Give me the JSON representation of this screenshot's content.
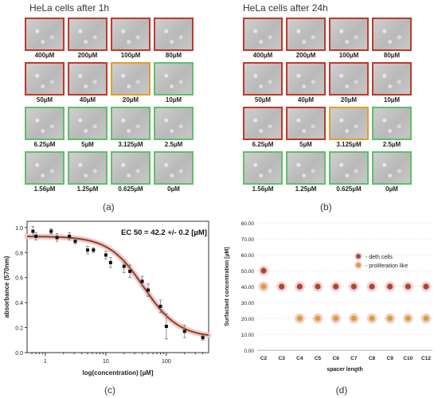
{
  "panel_a": {
    "title": "HeLa cells after 1h",
    "label": "(a)",
    "cells": [
      {
        "conc": "400µM",
        "border": "red"
      },
      {
        "conc": "200µM",
        "border": "red"
      },
      {
        "conc": "100µM",
        "border": "red"
      },
      {
        "conc": "80µM",
        "border": "red"
      },
      {
        "conc": "50µM",
        "border": "red"
      },
      {
        "conc": "40µM",
        "border": "red"
      },
      {
        "conc": "20µM",
        "border": "orange"
      },
      {
        "conc": "10µM",
        "border": "green"
      },
      {
        "conc": "6.25µM",
        "border": "green"
      },
      {
        "conc": "5µM",
        "border": "green"
      },
      {
        "conc": "3.125µM",
        "border": "green"
      },
      {
        "conc": "2.5µM",
        "border": "green"
      },
      {
        "conc": "1.56µM",
        "border": "green"
      },
      {
        "conc": "1.25µM",
        "border": "green"
      },
      {
        "conc": "0.625µM",
        "border": "green"
      },
      {
        "conc": "0µM",
        "border": "green"
      }
    ]
  },
  "panel_b": {
    "title": "HeLa cells after 24h",
    "label": "(b)",
    "cells": [
      {
        "conc": "400µM",
        "border": "red"
      },
      {
        "conc": "200µM",
        "border": "red"
      },
      {
        "conc": "100µM",
        "border": "red"
      },
      {
        "conc": "80µM",
        "border": "red"
      },
      {
        "conc": "50µM",
        "border": "red"
      },
      {
        "conc": "40µM",
        "border": "red"
      },
      {
        "conc": "20µM",
        "border": "red"
      },
      {
        "conc": "10µM",
        "border": "red"
      },
      {
        "conc": "6.25µM",
        "border": "red"
      },
      {
        "conc": "5µM",
        "border": "red"
      },
      {
        "conc": "3.125µM",
        "border": "orange"
      },
      {
        "conc": "2.5µM",
        "border": "green"
      },
      {
        "conc": "1.56µM",
        "border": "green"
      },
      {
        "conc": "1.25µM",
        "border": "green"
      },
      {
        "conc": "0.625µM",
        "border": "green"
      },
      {
        "conc": "0µM",
        "border": "green"
      }
    ]
  },
  "colors": {
    "red": "#c0392b",
    "orange": "#e0a030",
    "green": "#5fbf6a",
    "curve": "#8b4513",
    "death": "#a8482c",
    "prolif": "#d9a03a",
    "halo": "#f3c6d0"
  },
  "chart_data": [
    {
      "type": "scatter",
      "label": "(c)",
      "annotation": "EC 50 = 42.2 +/- 0.2  [µM]",
      "xlabel": "log(concentration) [µM]",
      "ylabel": "absorbance (570nm)",
      "xscale": "log",
      "xlim": [
        0.5,
        500
      ],
      "ylim": [
        0.0,
        1.05
      ],
      "xticks": [
        1,
        10,
        100
      ],
      "xtick_labels": [
        "1",
        "10",
        "100"
      ],
      "yticks": [
        0.0,
        0.2,
        0.4,
        0.6,
        0.8,
        1.0
      ],
      "ytick_labels": [
        "0.0",
        "0.2",
        "0.4",
        "0.6",
        "0.8",
        "1.0"
      ],
      "points": [
        {
          "x": 0.625,
          "y": 0.97,
          "err": 0.04
        },
        {
          "x": 0.7,
          "y": 0.93,
          "err": 0.03
        },
        {
          "x": 1.25,
          "y": 0.97,
          "err": 0.02
        },
        {
          "x": 1.56,
          "y": 0.92,
          "err": 0.03
        },
        {
          "x": 2.5,
          "y": 0.93,
          "err": 0.03
        },
        {
          "x": 3.125,
          "y": 0.89,
          "err": 0.02
        },
        {
          "x": 5,
          "y": 0.82,
          "err": 0.03
        },
        {
          "x": 6.25,
          "y": 0.82,
          "err": 0.02
        },
        {
          "x": 10,
          "y": 0.78,
          "err": 0.03
        },
        {
          "x": 12,
          "y": 0.72,
          "err": 0.04
        },
        {
          "x": 20,
          "y": 0.69,
          "err": 0.05
        },
        {
          "x": 25,
          "y": 0.65,
          "err": 0.05
        },
        {
          "x": 40,
          "y": 0.57,
          "err": 0.04
        },
        {
          "x": 50,
          "y": 0.5,
          "err": 0.05
        },
        {
          "x": 80,
          "y": 0.37,
          "err": 0.05
        },
        {
          "x": 100,
          "y": 0.21,
          "err": 0.1
        },
        {
          "x": 200,
          "y": 0.17,
          "err": 0.05
        },
        {
          "x": 400,
          "y": 0.12,
          "err": 0.02
        }
      ],
      "fit": {
        "top": 0.93,
        "bottom": 0.12,
        "ec50": 42.2,
        "hill": 1.5
      },
      "grid": false
    },
    {
      "type": "scatter",
      "label": "(d)",
      "xlabel": "spacer length",
      "ylabel": "Surfactant concentration  [µM]",
      "categories": [
        "C2",
        "C3",
        "C4",
        "C5",
        "C6",
        "C7",
        "C8",
        "C9",
        "C10",
        "C12"
      ],
      "ylim": [
        0,
        80
      ],
      "yticks": [
        0,
        10,
        20,
        30,
        40,
        50,
        60,
        70,
        80
      ],
      "ytick_labels": [
        "0.00",
        "10.00",
        "20.00",
        "30.00",
        "40.00",
        "50.00",
        "60.00",
        "70.00",
        "80.00"
      ],
      "legend_position": "upper-right",
      "series": [
        {
          "name": "- deth cells",
          "values": [
            50,
            40,
            40,
            40,
            40,
            40,
            40,
            40,
            40,
            40
          ]
        },
        {
          "name": "- proliferation like",
          "values": [
            40,
            null,
            20,
            20,
            20,
            20,
            20,
            20,
            20,
            20
          ]
        }
      ],
      "grid": "y"
    }
  ]
}
